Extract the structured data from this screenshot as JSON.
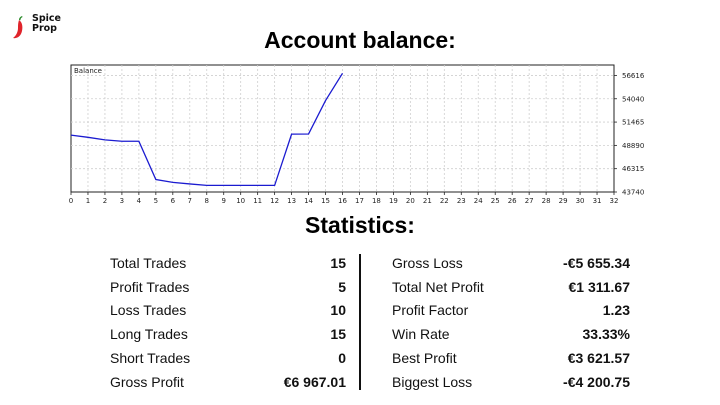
{
  "brand": {
    "line1": "Spice",
    "line2": "Prop",
    "accent": "#e0242b"
  },
  "title": "Account balance:",
  "stats_title": "Statistics:",
  "chart_data": {
    "type": "line",
    "title": "Balance",
    "x": [
      0,
      1,
      2,
      3,
      4,
      5,
      6,
      7,
      8,
      9,
      10,
      11,
      12,
      13,
      14,
      15,
      16
    ],
    "series": [
      {
        "values": [
          50027,
          49780,
          49495,
          49348,
          49348,
          45123,
          44805,
          44630,
          44470,
          44470,
          44470,
          44470,
          44470,
          50130,
          50150,
          53840,
          56850
        ],
        "color": "#1b1bd0"
      }
    ],
    "x_ticks": [
      0,
      1,
      2,
      3,
      4,
      5,
      6,
      7,
      8,
      9,
      10,
      11,
      12,
      13,
      14,
      15,
      16,
      17,
      18,
      19,
      20,
      21,
      22,
      23,
      24,
      25,
      26,
      27,
      28,
      29,
      30,
      31,
      32
    ],
    "y_ticks": [
      43740,
      46315,
      48890,
      51465,
      54040,
      56616
    ],
    "xlim": [
      0,
      32
    ],
    "ylim": [
      43740,
      57770
    ],
    "grid": true
  },
  "stats_left": [
    {
      "label": "Total Trades",
      "value": "15"
    },
    {
      "label": "Profit Trades",
      "value": "5"
    },
    {
      "label": "Loss Trades",
      "value": "10"
    },
    {
      "label": "Long Trades",
      "value": "15"
    },
    {
      "label": "Short Trades",
      "value": "0"
    },
    {
      "label": "Gross Profit",
      "value": "€6 967.01"
    }
  ],
  "stats_right": [
    {
      "label": "Gross Loss",
      "value": "-€5 655.34"
    },
    {
      "label": "Total Net Profit",
      "value": "€1 311.67"
    },
    {
      "label": "Profit Factor",
      "value": "1.23"
    },
    {
      "label": "Win Rate",
      "value": "33.33%"
    },
    {
      "label": "Best Profit",
      "value": "€3 621.57"
    },
    {
      "label": "Biggest Loss",
      "value": "-€4 200.75"
    }
  ]
}
